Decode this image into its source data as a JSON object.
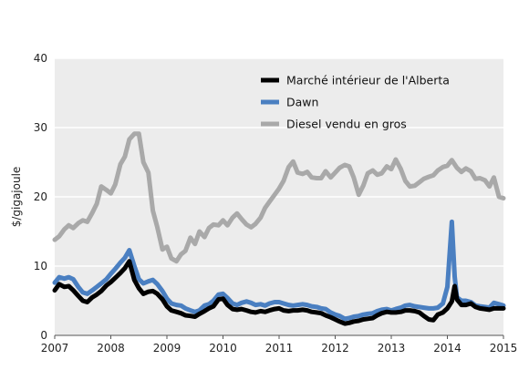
{
  "chart_data": {
    "type": "line",
    "title": "",
    "xlabel": "",
    "ylabel": "$/gigajoule",
    "xlim": [
      2007,
      2015
    ],
    "ylim": [
      0,
      40
    ],
    "xticks": [
      "2007",
      "2008",
      "2009",
      "2010",
      "2011",
      "2012",
      "2013",
      "2014",
      "2015"
    ],
    "yticks": [
      "0",
      "10",
      "20",
      "30",
      "40"
    ],
    "plot_background": "#ececec",
    "grid": "horizontal",
    "legend_position": "top-right",
    "series": [
      {
        "name": "Marché intérieur de l'Alberta",
        "color": "#000000",
        "x": [
          2007.0,
          2007.08,
          2007.17,
          2007.25,
          2007.33,
          2007.42,
          2007.5,
          2007.58,
          2007.67,
          2007.75,
          2007.83,
          2007.92,
          2008.0,
          2008.08,
          2008.17,
          2008.25,
          2008.33,
          2008.42,
          2008.5,
          2008.58,
          2008.67,
          2008.75,
          2008.83,
          2008.92,
          2009.0,
          2009.08,
          2009.17,
          2009.25,
          2009.33,
          2009.42,
          2009.5,
          2009.58,
          2009.67,
          2009.75,
          2009.83,
          2009.92,
          2010.0,
          2010.08,
          2010.17,
          2010.25,
          2010.33,
          2010.42,
          2010.5,
          2010.58,
          2010.67,
          2010.75,
          2010.83,
          2010.92,
          2011.0,
          2011.08,
          2011.17,
          2011.25,
          2011.33,
          2011.42,
          2011.5,
          2011.58,
          2011.67,
          2011.75,
          2011.83,
          2011.92,
          2012.0,
          2012.08,
          2012.17,
          2012.25,
          2012.33,
          2012.42,
          2012.5,
          2012.58,
          2012.67,
          2012.75,
          2012.83,
          2012.92,
          2013.0,
          2013.08,
          2013.17,
          2013.25,
          2013.33,
          2013.42,
          2013.5,
          2013.58,
          2013.67,
          2013.75,
          2013.83,
          2013.92,
          2014.0,
          2014.08,
          2014.13,
          2014.17,
          2014.25,
          2014.33,
          2014.42,
          2014.5,
          2014.58,
          2014.67,
          2014.75,
          2014.83,
          2014.92,
          2015.0
        ],
        "values": [
          6.5,
          7.4,
          7.0,
          7.1,
          6.5,
          5.7,
          5.0,
          4.8,
          5.5,
          5.9,
          6.4,
          7.2,
          7.7,
          8.3,
          9.0,
          9.7,
          10.7,
          8.0,
          6.8,
          6.0,
          6.3,
          6.4,
          6.0,
          5.2,
          4.2,
          3.6,
          3.4,
          3.2,
          2.9,
          2.8,
          2.7,
          3.1,
          3.5,
          3.9,
          4.2,
          5.2,
          5.3,
          4.4,
          3.8,
          3.7,
          3.8,
          3.6,
          3.4,
          3.3,
          3.5,
          3.4,
          3.6,
          3.8,
          3.9,
          3.6,
          3.5,
          3.6,
          3.6,
          3.7,
          3.6,
          3.4,
          3.3,
          3.2,
          2.9,
          2.6,
          2.3,
          2.0,
          1.7,
          1.8,
          2.0,
          2.1,
          2.3,
          2.4,
          2.5,
          2.9,
          3.2,
          3.4,
          3.3,
          3.3,
          3.4,
          3.6,
          3.6,
          3.5,
          3.3,
          2.8,
          2.3,
          2.2,
          3.0,
          3.3,
          3.9,
          4.9,
          7.1,
          5.2,
          4.4,
          4.4,
          4.6,
          4.1,
          3.9,
          3.8,
          3.7,
          3.9,
          3.9,
          3.9
        ]
      },
      {
        "name": "Dawn",
        "color": "#4a7fc1",
        "x": [
          2007.0,
          2007.08,
          2007.17,
          2007.25,
          2007.33,
          2007.42,
          2007.5,
          2007.58,
          2007.67,
          2007.75,
          2007.83,
          2007.92,
          2008.0,
          2008.08,
          2008.17,
          2008.25,
          2008.33,
          2008.42,
          2008.5,
          2008.58,
          2008.67,
          2008.75,
          2008.83,
          2008.92,
          2009.0,
          2009.08,
          2009.17,
          2009.25,
          2009.33,
          2009.42,
          2009.5,
          2009.58,
          2009.67,
          2009.75,
          2009.83,
          2009.92,
          2010.0,
          2010.08,
          2010.17,
          2010.25,
          2010.33,
          2010.42,
          2010.5,
          2010.58,
          2010.67,
          2010.75,
          2010.83,
          2010.92,
          2011.0,
          2011.08,
          2011.17,
          2011.25,
          2011.33,
          2011.42,
          2011.5,
          2011.58,
          2011.67,
          2011.75,
          2011.83,
          2011.92,
          2012.0,
          2012.08,
          2012.17,
          2012.25,
          2012.33,
          2012.42,
          2012.5,
          2012.58,
          2012.67,
          2012.75,
          2012.83,
          2012.92,
          2013.0,
          2013.08,
          2013.17,
          2013.25,
          2013.33,
          2013.42,
          2013.5,
          2013.58,
          2013.67,
          2013.75,
          2013.83,
          2013.92,
          2014.0,
          2014.08,
          2014.13,
          2014.17,
          2014.25,
          2014.33,
          2014.42,
          2014.5,
          2014.58,
          2014.67,
          2014.75,
          2014.83,
          2014.92,
          2015.0
        ],
        "values": [
          7.6,
          8.4,
          8.2,
          8.4,
          8.1,
          7.0,
          6.2,
          6.0,
          6.5,
          7.0,
          7.5,
          8.1,
          8.9,
          9.6,
          10.5,
          11.2,
          12.3,
          10.0,
          8.1,
          7.5,
          7.8,
          8.0,
          7.4,
          6.4,
          5.3,
          4.6,
          4.4,
          4.3,
          3.9,
          3.6,
          3.4,
          3.6,
          4.3,
          4.5,
          5.0,
          5.9,
          6.0,
          5.4,
          4.6,
          4.4,
          4.7,
          4.9,
          4.7,
          4.4,
          4.5,
          4.3,
          4.6,
          4.8,
          4.8,
          4.6,
          4.4,
          4.3,
          4.4,
          4.5,
          4.4,
          4.2,
          4.1,
          3.9,
          3.8,
          3.3,
          3.0,
          2.8,
          2.4,
          2.5,
          2.7,
          2.8,
          3.0,
          3.1,
          3.2,
          3.5,
          3.7,
          3.8,
          3.6,
          3.8,
          4.0,
          4.3,
          4.4,
          4.2,
          4.1,
          4.0,
          3.9,
          3.9,
          4.0,
          4.6,
          7.0,
          16.4,
          8.5,
          5.5,
          5.0,
          5.0,
          4.8,
          4.3,
          4.2,
          4.1,
          4.0,
          4.7,
          4.5,
          4.3
        ]
      },
      {
        "name": "Diesel vendu en gros",
        "color": "#a9a9a9",
        "x": [
          2007.0,
          2007.08,
          2007.17,
          2007.25,
          2007.33,
          2007.42,
          2007.5,
          2007.58,
          2007.67,
          2007.75,
          2007.83,
          2007.92,
          2008.0,
          2008.08,
          2008.17,
          2008.25,
          2008.33,
          2008.42,
          2008.5,
          2008.58,
          2008.67,
          2008.75,
          2008.83,
          2008.92,
          2009.0,
          2009.08,
          2009.17,
          2009.25,
          2009.33,
          2009.42,
          2009.5,
          2009.58,
          2009.67,
          2009.75,
          2009.83,
          2009.92,
          2010.0,
          2010.08,
          2010.17,
          2010.25,
          2010.33,
          2010.42,
          2010.5,
          2010.58,
          2010.67,
          2010.75,
          2010.83,
          2010.92,
          2011.0,
          2011.08,
          2011.17,
          2011.25,
          2011.33,
          2011.42,
          2011.5,
          2011.58,
          2011.67,
          2011.75,
          2011.83,
          2011.92,
          2012.0,
          2012.08,
          2012.17,
          2012.25,
          2012.33,
          2012.42,
          2012.5,
          2012.58,
          2012.67,
          2012.75,
          2012.83,
          2012.92,
          2013.0,
          2013.08,
          2013.17,
          2013.25,
          2013.33,
          2013.42,
          2013.5,
          2013.58,
          2013.67,
          2013.75,
          2013.83,
          2013.92,
          2014.0,
          2014.08,
          2014.17,
          2014.25,
          2014.33,
          2014.42,
          2014.5,
          2014.58,
          2014.67,
          2014.75,
          2014.83,
          2014.92,
          2015.0
        ],
        "values": [
          13.8,
          14.3,
          15.3,
          15.9,
          15.5,
          16.2,
          16.6,
          16.4,
          17.7,
          19.0,
          21.5,
          21.0,
          20.5,
          21.8,
          24.7,
          25.8,
          28.3,
          29.1,
          29.1,
          25.0,
          23.5,
          18.0,
          15.6,
          12.4,
          12.8,
          11.1,
          10.7,
          11.7,
          12.2,
          14.1,
          13.2,
          15.0,
          14.2,
          15.5,
          16.0,
          15.9,
          16.6,
          15.9,
          17.0,
          17.6,
          16.8,
          16.0,
          15.6,
          16.1,
          17.0,
          18.4,
          19.3,
          20.3,
          21.2,
          22.3,
          24.3,
          25.1,
          23.5,
          23.3,
          23.6,
          22.8,
          22.7,
          22.7,
          23.7,
          22.8,
          23.5,
          24.2,
          24.6,
          24.4,
          22.8,
          20.3,
          21.6,
          23.4,
          23.8,
          23.2,
          23.4,
          24.4,
          24.0,
          25.4,
          24.0,
          22.3,
          21.5,
          21.6,
          22.1,
          22.6,
          22.9,
          23.1,
          23.8,
          24.3,
          24.5,
          25.3,
          24.2,
          23.6,
          24.1,
          23.7,
          22.6,
          22.7,
          22.4,
          21.5,
          22.8,
          20.0,
          19.8
        ]
      }
    ]
  }
}
